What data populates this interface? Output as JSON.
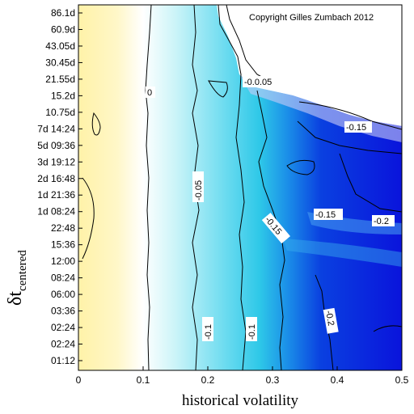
{
  "chart_data": {
    "type": "heatmap",
    "title": "",
    "copyright": "Copyright Gilles Zumbach 2012",
    "xlabel": "historical volatility",
    "ylabel_main": "δt",
    "ylabel_sub": "centered",
    "xlim": [
      0,
      0.5
    ],
    "x_ticks": [
      "0",
      "0.1",
      "0.2",
      "0.3",
      "0.4",
      "0.5"
    ],
    "y_ticks": [
      "86.1d",
      "60.9d",
      "43.05d",
      "30.45d",
      "21.55d",
      "15.2d",
      "10.75d",
      "7d 14:24",
      "5d 09:36",
      "3d 19:12",
      "2d 16:48",
      "1d 21:36",
      "1d 08:24",
      "22:48",
      "15:36",
      "12:00",
      "08:24",
      "06:00",
      "03:36",
      "02:24",
      "02:24",
      "01:12"
    ],
    "colorscale": {
      "low": "#0a14dc",
      "mid": "#ffffff",
      "high": "#fff2a8"
    },
    "contours": [
      {
        "level": "0",
        "vol": 0.04
      },
      {
        "level": "-0.05",
        "vol": 0.185
      },
      {
        "level": "-0.1",
        "vol": 0.265
      },
      {
        "level": "-0.15",
        "vol": 0.34
      },
      {
        "level": "-0.2",
        "vol": 0.41
      }
    ],
    "contour_labels": [
      "-0.05",
      "-0.1",
      "-0.1",
      "-0.15",
      "-0.15",
      "-0.15",
      "-0.2",
      "-0.2",
      "-0.05",
      "0",
      "-0.1"
    ]
  }
}
